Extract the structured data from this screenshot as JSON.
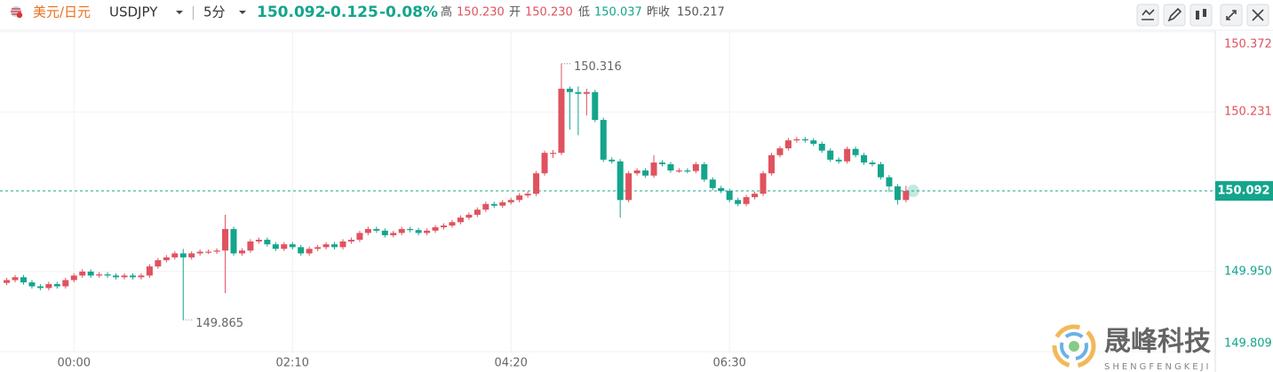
{
  "header": {
    "pair": "美元/日元",
    "symbol": "USDJPY",
    "separator": "|",
    "interval": "5分",
    "price": "150.092",
    "change": "-0.125",
    "change_pct": "-0.08%",
    "high_label": "高",
    "high": "150.230",
    "open_label": "开",
    "open": "150.230",
    "low_label": "低",
    "low": "150.037",
    "prev_close_label": "昨收",
    "prev_close": "150.217"
  },
  "watermark": {
    "name": "晟峰科技",
    "pinyin": "SHENGFENGKEJI"
  },
  "chart_data": {
    "type": "candlestick",
    "up_color": "#e0525f",
    "down_color": "#14a58c",
    "grid": true,
    "last_price": 150.092,
    "xlim": [
      -44,
      679
    ],
    "ylim": [
      149.806,
      150.375
    ],
    "xticks": [
      {
        "value": 0,
        "label": "00:00"
      },
      {
        "value": 130,
        "label": "02:10"
      },
      {
        "value": 260,
        "label": "04:20"
      },
      {
        "value": 390,
        "label": "06:30"
      }
    ],
    "yticks": [
      149.809,
      {
        "value": 149.95,
        "label": "149.950"
      },
      150.231,
      150.372
    ],
    "x": [
      -40,
      -35,
      -30,
      -25,
      -20,
      -15,
      -10,
      -5,
      0,
      5,
      10,
      15,
      20,
      25,
      30,
      35,
      40,
      45,
      50,
      55,
      60,
      65,
      70,
      75,
      80,
      85,
      90,
      95,
      100,
      105,
      110,
      115,
      120,
      125,
      130,
      135,
      140,
      145,
      150,
      155,
      160,
      165,
      170,
      175,
      180,
      185,
      190,
      195,
      200,
      205,
      210,
      215,
      220,
      225,
      230,
      235,
      240,
      245,
      250,
      255,
      260,
      265,
      270,
      275,
      280,
      285,
      290,
      295,
      300,
      305,
      310,
      315,
      320,
      325,
      330,
      335,
      340,
      345,
      350,
      355,
      360,
      365,
      370,
      375,
      380,
      385,
      390,
      395,
      400,
      405,
      410,
      415,
      420,
      425,
      430,
      435,
      440,
      445,
      450,
      455,
      460,
      465,
      470,
      475,
      480,
      485,
      490,
      495
    ],
    "open": [
      149.93,
      149.935,
      149.94,
      149.931,
      149.924,
      149.921,
      149.928,
      149.924,
      149.935,
      149.943,
      149.95,
      149.943,
      149.945,
      149.943,
      149.94,
      149.943,
      149.94,
      149.943,
      149.959,
      149.97,
      149.975,
      149.982,
      149.975,
      149.982,
      149.985,
      149.985,
      149.987,
      150.025,
      149.982,
      149.987,
      150.003,
      150.006,
      149.998,
      149.99,
      149.998,
      149.993,
      149.982,
      149.99,
      149.993,
      149.998,
      149.993,
      150.003,
      150.006,
      150.018,
      150.025,
      150.022,
      150.014,
      150.018,
      150.025,
      150.023,
      150.018,
      150.022,
      150.028,
      150.031,
      150.037,
      150.045,
      150.05,
      150.059,
      150.069,
      150.066,
      150.072,
      150.076,
      150.084,
      150.087,
      150.123,
      150.159,
      150.159,
      150.272,
      150.266,
      150.263,
      150.266,
      150.217,
      150.147,
      150.144,
      150.076,
      150.123,
      150.128,
      150.119,
      150.142,
      150.139,
      150.128,
      150.128,
      150.127,
      150.139,
      150.112,
      150.097,
      150.092,
      150.076,
      150.069,
      150.081,
      150.087,
      150.123,
      150.155,
      150.167,
      150.181,
      150.183,
      150.181,
      150.175,
      150.163,
      150.147,
      150.144,
      150.166,
      150.155,
      150.142,
      150.139,
      150.116,
      150.1,
      150.076
    ],
    "high": [
      149.939,
      149.944,
      149.944,
      149.935,
      149.928,
      149.932,
      149.932,
      149.939,
      149.947,
      149.954,
      149.954,
      149.949,
      149.949,
      149.947,
      149.947,
      149.947,
      149.947,
      149.963,
      149.974,
      149.979,
      149.986,
      149.99,
      149.986,
      149.989,
      149.989,
      149.991,
      150.05,
      150.029,
      149.991,
      150.007,
      150.01,
      150.01,
      150.002,
      150.002,
      150.002,
      149.997,
      149.994,
      149.997,
      150.002,
      150.002,
      150.007,
      150.01,
      150.022,
      150.029,
      150.029,
      150.026,
      150.022,
      150.029,
      150.029,
      150.027,
      150.026,
      150.032,
      150.035,
      150.041,
      150.049,
      150.054,
      150.063,
      150.073,
      150.073,
      150.076,
      150.08,
      150.088,
      150.091,
      150.127,
      150.163,
      150.164,
      150.316,
      150.276,
      150.276,
      150.272,
      150.27,
      150.221,
      150.151,
      150.148,
      150.127,
      150.132,
      150.132,
      150.155,
      150.146,
      150.143,
      150.132,
      150.132,
      150.143,
      150.143,
      150.116,
      150.101,
      150.096,
      150.08,
      150.085,
      150.091,
      150.127,
      150.159,
      150.171,
      150.185,
      150.187,
      150.187,
      150.185,
      150.179,
      150.167,
      150.151,
      150.17,
      150.17,
      150.159,
      150.146,
      150.143,
      150.12,
      150.104,
      150.101
    ],
    "low": [
      149.926,
      149.931,
      149.927,
      149.92,
      149.917,
      149.917,
      149.92,
      149.92,
      149.931,
      149.939,
      149.939,
      149.939,
      149.939,
      149.936,
      149.936,
      149.936,
      149.936,
      149.939,
      149.955,
      149.966,
      149.971,
      149.865,
      149.971,
      149.978,
      149.981,
      149.981,
      149.912,
      149.978,
      149.978,
      149.983,
      149.999,
      149.994,
      149.986,
      149.986,
      149.989,
      149.978,
      149.978,
      149.986,
      149.989,
      149.989,
      149.989,
      149.999,
      150.002,
      150.014,
      150.018,
      150.01,
      150.01,
      150.014,
      150.019,
      150.014,
      150.014,
      150.018,
      150.024,
      150.027,
      150.033,
      150.041,
      150.046,
      150.055,
      150.062,
      150.062,
      150.068,
      150.072,
      150.08,
      150.083,
      150.119,
      150.15,
      150.155,
      150.2,
      150.19,
      150.225,
      150.213,
      150.143,
      150.14,
      150.045,
      150.072,
      150.119,
      150.115,
      150.115,
      150.135,
      150.124,
      150.124,
      150.123,
      150.123,
      150.108,
      150.093,
      150.088,
      150.072,
      150.065,
      150.065,
      150.077,
      150.083,
      150.119,
      150.151,
      150.163,
      150.177,
      150.177,
      150.171,
      150.159,
      150.143,
      150.14,
      150.14,
      150.151,
      150.138,
      150.135,
      150.112,
      150.09,
      150.068,
      150.072
    ],
    "close": [
      149.935,
      149.94,
      149.931,
      149.924,
      149.921,
      149.928,
      149.924,
      149.935,
      149.943,
      149.95,
      149.943,
      149.945,
      149.943,
      149.94,
      149.943,
      149.94,
      149.943,
      149.959,
      149.97,
      149.975,
      149.982,
      149.975,
      149.982,
      149.985,
      149.985,
      149.987,
      150.025,
      149.982,
      149.987,
      150.003,
      150.006,
      149.998,
      149.99,
      149.998,
      149.993,
      149.982,
      149.99,
      149.993,
      149.998,
      149.993,
      150.003,
      150.006,
      150.018,
      150.025,
      150.022,
      150.014,
      150.018,
      150.025,
      150.023,
      150.018,
      150.022,
      150.028,
      150.031,
      150.037,
      150.045,
      150.05,
      150.059,
      150.069,
      150.066,
      150.072,
      150.076,
      150.084,
      150.087,
      150.123,
      150.159,
      150.159,
      150.272,
      150.266,
      150.263,
      150.266,
      150.217,
      150.147,
      150.144,
      150.076,
      150.123,
      150.128,
      150.119,
      150.142,
      150.139,
      150.128,
      150.128,
      150.127,
      150.139,
      150.112,
      150.097,
      150.092,
      150.076,
      150.069,
      150.081,
      150.087,
      150.123,
      150.155,
      150.167,
      150.181,
      150.183,
      150.181,
      150.175,
      150.163,
      150.147,
      150.144,
      150.166,
      150.155,
      150.142,
      150.139,
      150.116,
      150.1,
      150.076,
      150.092
    ]
  }
}
